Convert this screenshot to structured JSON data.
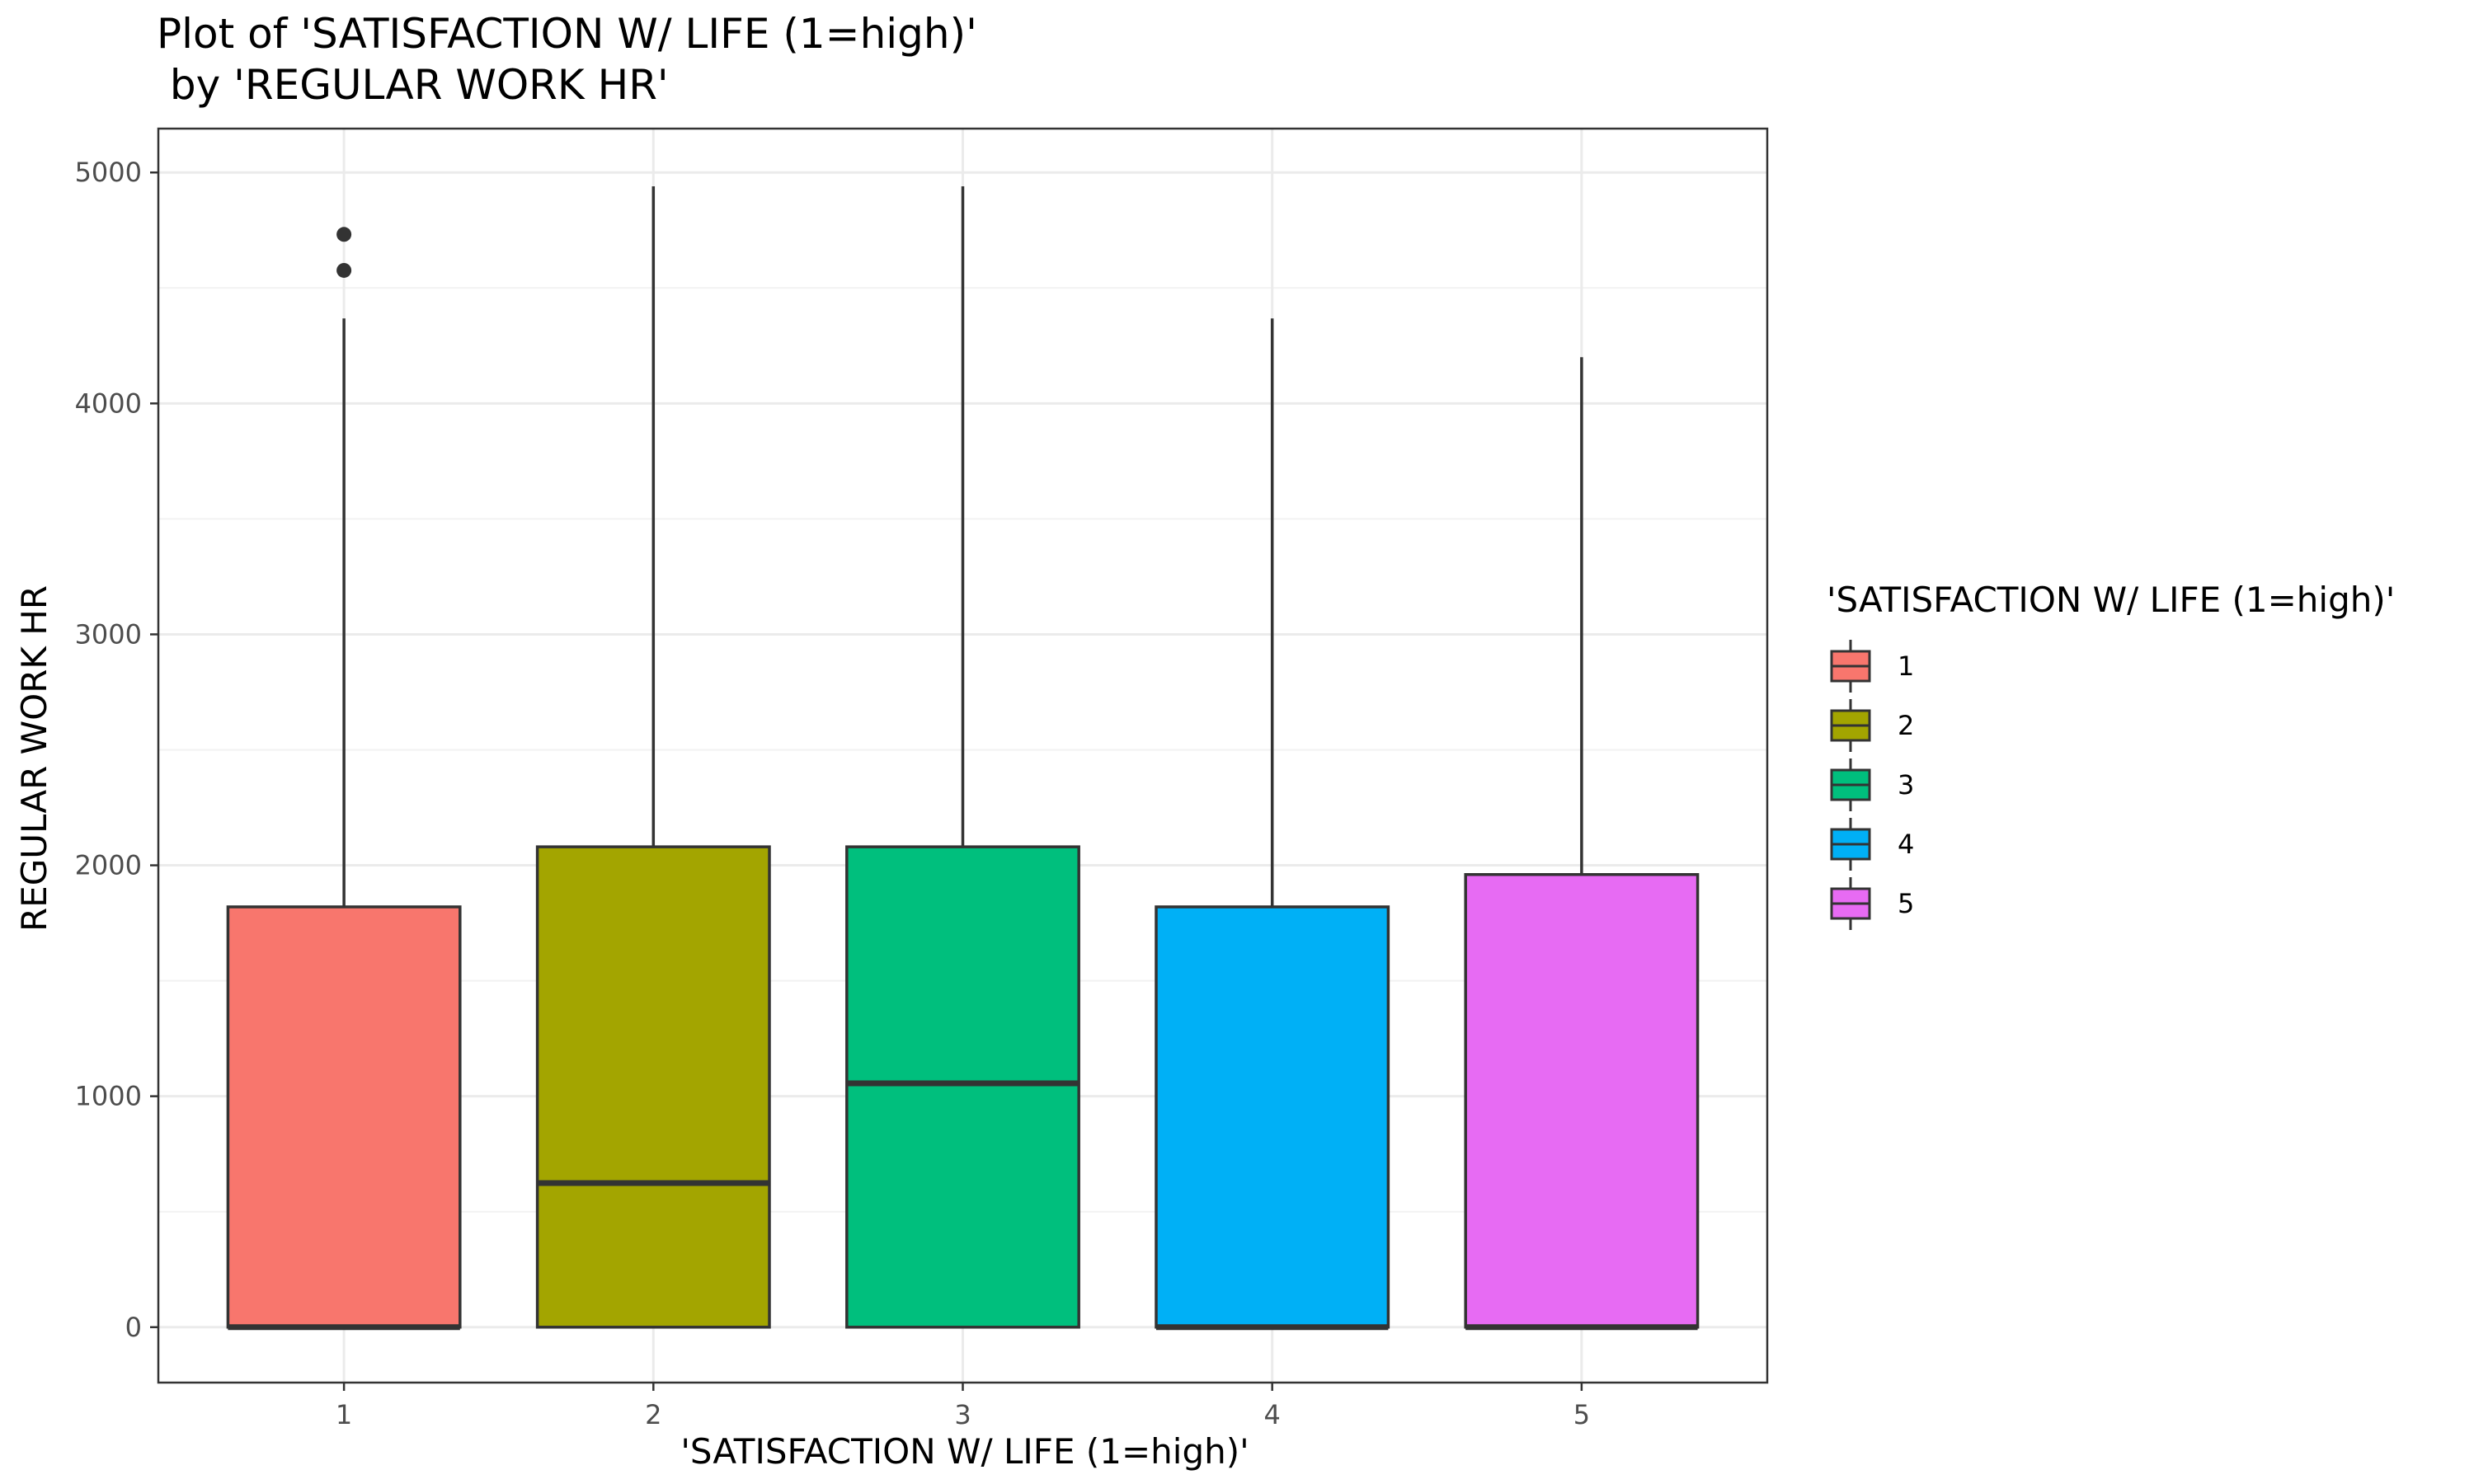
{
  "chart_data": {
    "type": "boxplot",
    "title_lines": [
      "Plot of 'SATISFACTION W/ LIFE (1=high)'",
      " by 'REGULAR WORK HR'"
    ],
    "xlabel": "'SATISFACTION W/ LIFE (1=high)'",
    "ylabel": "REGULAR WORK HR",
    "categories": [
      "1",
      "2",
      "3",
      "4",
      "5"
    ],
    "ylim": [
      -240,
      5190
    ],
    "y_ticks": [
      0,
      1000,
      2000,
      3000,
      4000,
      5000
    ],
    "y_tick_labels": [
      "0",
      "1000",
      "2000",
      "3000",
      "4000",
      "5000"
    ],
    "grid": true,
    "boxes": [
      {
        "category": "1",
        "q1": 0,
        "median": 0,
        "q3": 1820,
        "whisker_low": 0,
        "whisker_high": 4368,
        "outliers": [
          4576,
          4732
        ]
      },
      {
        "category": "2",
        "q1": 0,
        "median": 624,
        "q3": 2080,
        "whisker_low": 0,
        "whisker_high": 4940,
        "outliers": []
      },
      {
        "category": "3",
        "q1": 0,
        "median": 1056,
        "q3": 2080,
        "whisker_low": 0,
        "whisker_high": 4940,
        "outliers": []
      },
      {
        "category": "4",
        "q1": 0,
        "median": 0,
        "q3": 1820,
        "whisker_low": 0,
        "whisker_high": 4368,
        "outliers": []
      },
      {
        "category": "5",
        "q1": 0,
        "median": 0,
        "q3": 1960,
        "whisker_low": 0,
        "whisker_high": 4200,
        "outliers": []
      }
    ],
    "colors": [
      "#F8766D",
      "#A3A500",
      "#00BF7D",
      "#00B0F6",
      "#E76BF3"
    ],
    "legend": {
      "title": "'SATISFACTION W/ LIFE (1=high)'",
      "placement": "right",
      "entries": [
        "1",
        "2",
        "3",
        "4",
        "5"
      ]
    }
  }
}
